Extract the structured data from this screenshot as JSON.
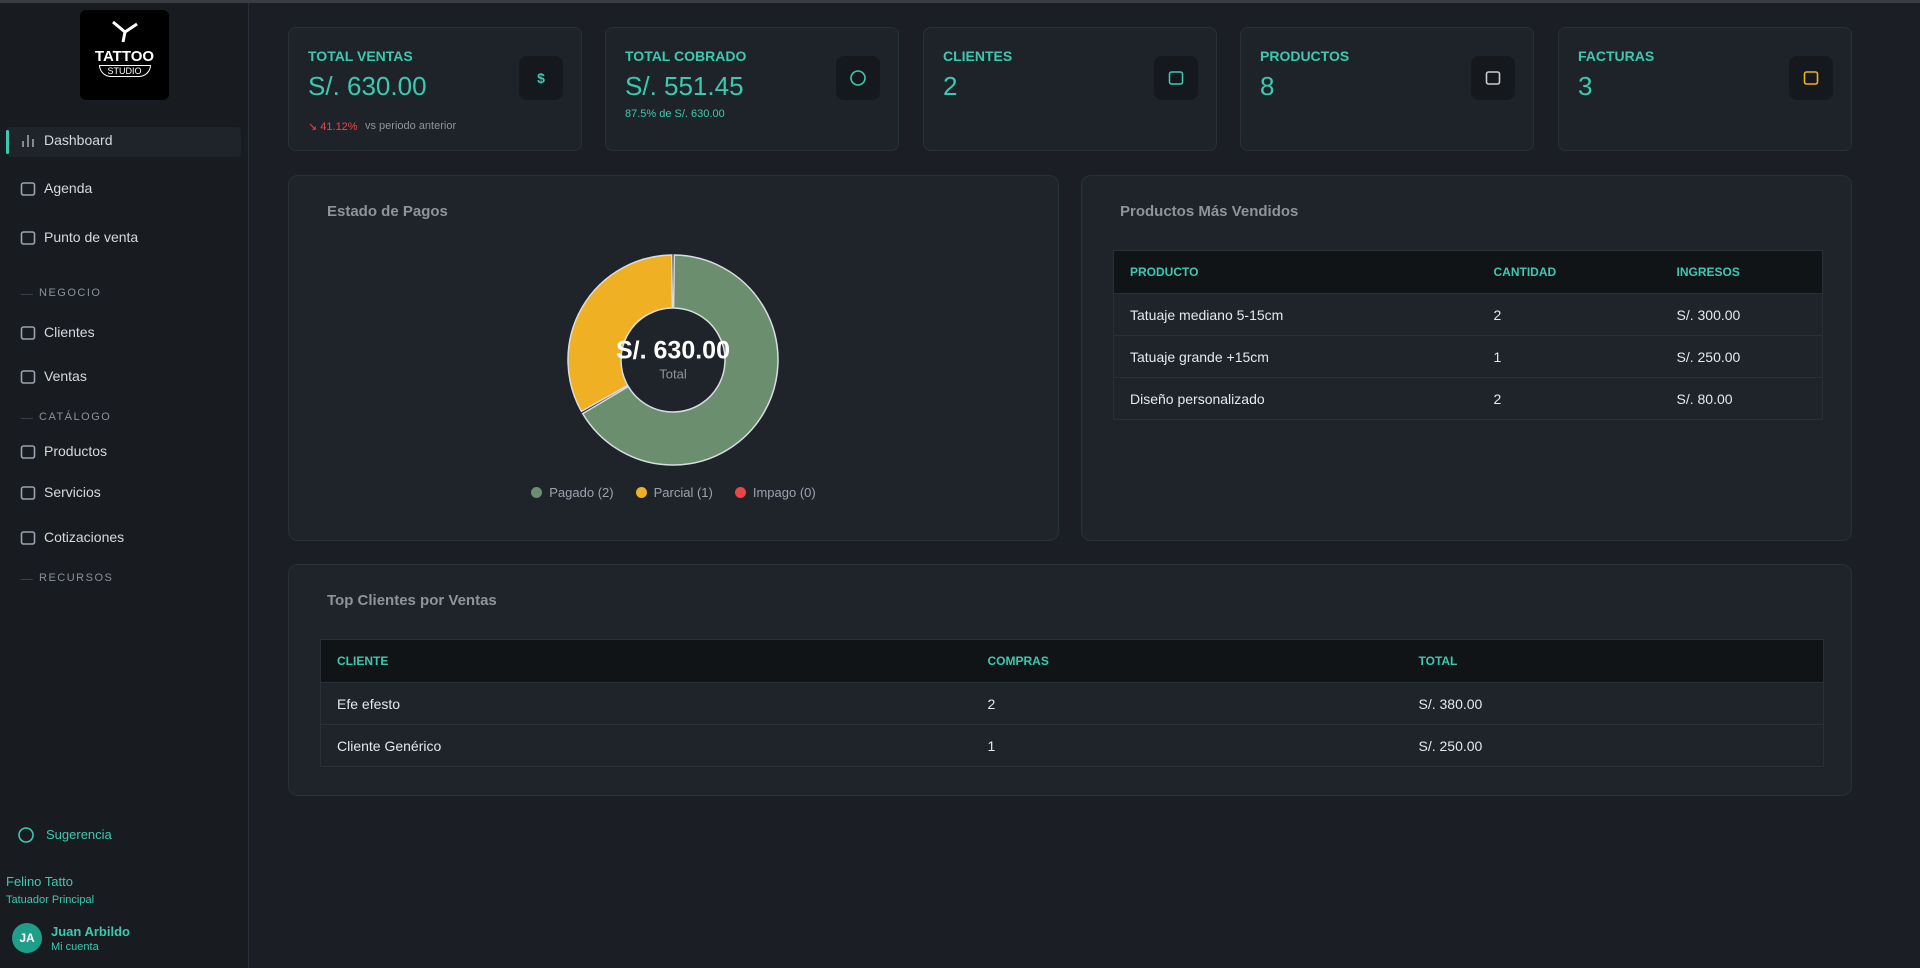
{
  "sidebar": {
    "logo": {
      "line1": "TATTOO",
      "line2": "STUDIO"
    },
    "nav": [
      "Dashboard",
      "Agenda",
      "Punto de venta"
    ],
    "sections": [
      {
        "title": "NEGOCIO",
        "items": [
          "Clientes",
          "Ventas"
        ]
      },
      {
        "title": "CATÁLOGO",
        "items": [
          "Productos",
          "Servicios",
          "Cotizaciones"
        ]
      },
      {
        "title": "RECURSOS"
      }
    ],
    "suggestion": "Sugerencia",
    "studio": {
      "name": "Felino Tatto",
      "role": "Tatuador Principal"
    },
    "user": {
      "initials": "JA",
      "name": "Juan Arbildo",
      "link": "Mi cuenta"
    }
  },
  "stats": [
    {
      "label": "TOTAL VENTAS",
      "value": "S/. 630.00",
      "icon": "$",
      "change": "↘ 41.12%",
      "note": "vs periodo anterior"
    },
    {
      "label": "TOTAL COBRADO",
      "value": "S/. 551.45",
      "note": "87.5% de S/. 630.00"
    },
    {
      "label": "CLIENTES",
      "value": "2"
    },
    {
      "label": "PRODUCTOS",
      "value": "8"
    },
    {
      "label": "FACTURAS",
      "value": "3"
    }
  ],
  "chart_data": {
    "type": "pie",
    "title": "Estado de Pagos",
    "center_value": "S/. 630.00",
    "center_label": "Total",
    "values": [
      2,
      1,
      0
    ],
    "legend_labels": [
      "Pagado (2)",
      "Parcial (1)",
      "Impago (0)"
    ],
    "colors": [
      "#6b8f6e",
      "#f0b024",
      "#ef4444"
    ]
  },
  "top_products": {
    "title": "Productos Más Vendidos",
    "columns": [
      "PRODUCTO",
      "CANTIDAD",
      "INGRESOS"
    ],
    "rows": [
      [
        "Tatuaje mediano 5-15cm",
        "2",
        "S/. 300.00"
      ],
      [
        "Tatuaje grande +15cm",
        "1",
        "S/. 250.00"
      ],
      [
        "Diseño personalizado",
        "2",
        "S/. 80.00"
      ]
    ]
  },
  "top_clients": {
    "title": "Top Clientes por Ventas",
    "columns": [
      "CLIENTE",
      "COMPRAS",
      "TOTAL"
    ],
    "rows": [
      [
        "Efe efesto",
        "2",
        "S/. 380.00"
      ],
      [
        "Cliente Genérico",
        "1",
        "S/. 250.00"
      ]
    ]
  }
}
